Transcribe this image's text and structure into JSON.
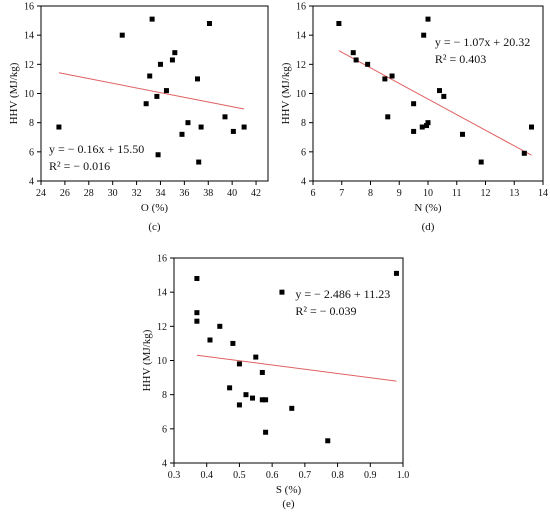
{
  "chart_data": [
    {
      "type": "scatter",
      "panel_label": "(c)",
      "xlabel": "O (%)",
      "ylabel": "HHV (MJ/kg)",
      "xlim": [
        24,
        43
      ],
      "ylim": [
        4,
        16
      ],
      "xticks": [
        "24",
        "26",
        "28",
        "30",
        "32",
        "34",
        "36",
        "38",
        "40",
        "42"
      ],
      "yticks": [
        "4",
        "6",
        "8",
        "10",
        "12",
        "14",
        "16"
      ],
      "xtick_values": [
        24,
        26,
        28,
        30,
        32,
        34,
        36,
        38,
        40,
        42
      ],
      "ytick_values": [
        4,
        6,
        8,
        10,
        12,
        14,
        16
      ],
      "equation": "y = − 0.16x + 15.50",
      "r2": "R² = − 0.016",
      "annotation_pos": "bottom-left",
      "fit": {
        "slope": -0.16,
        "intercept": 15.5,
        "x_range": [
          25.5,
          41
        ]
      },
      "series": [
        {
          "x": [
            25.5,
            30.8,
            32.8,
            33.1,
            33.3,
            33.7,
            33.8,
            34.0,
            34.5,
            35.0,
            35.2,
            35.8,
            36.3,
            37.1,
            37.2,
            37.4,
            38.1,
            39.4,
            40.1,
            41.0
          ],
          "y": [
            7.7,
            14.0,
            9.3,
            11.2,
            15.1,
            9.8,
            5.8,
            12.0,
            10.2,
            12.3,
            12.8,
            7.2,
            8.0,
            11.0,
            5.3,
            7.7,
            14.8,
            8.4,
            7.4,
            7.7
          ]
        }
      ],
      "grid": false,
      "trendline_color": "#e06060"
    },
    {
      "type": "scatter",
      "panel_label": "(d)",
      "xlabel": "N (%)",
      "ylabel": "HHV (MJ/kg)",
      "xlim": [
        6,
        14
      ],
      "ylim": [
        4,
        16
      ],
      "xticks": [
        "6",
        "7",
        "8",
        "9",
        "10",
        "11",
        "12",
        "13",
        "14"
      ],
      "yticks": [
        "4",
        "6",
        "8",
        "10",
        "12",
        "14",
        "16"
      ],
      "xtick_values": [
        6,
        7,
        8,
        9,
        10,
        11,
        12,
        13,
        14
      ],
      "ytick_values": [
        4,
        6,
        8,
        10,
        12,
        14,
        16
      ],
      "equation": "y = − 1.07x + 20.32",
      "r2": "R² = 0.403",
      "annotation_pos": "top-right",
      "fit": {
        "slope": -1.07,
        "intercept": 20.32,
        "x_range": [
          6.9,
          13.6
        ]
      },
      "series": [
        {
          "x": [
            6.9,
            7.4,
            7.5,
            7.9,
            8.5,
            8.6,
            8.75,
            9.5,
            9.5,
            9.8,
            9.85,
            9.95,
            10.0,
            10.0,
            10.4,
            10.55,
            11.2,
            11.85,
            13.35,
            13.6
          ],
          "y": [
            14.8,
            12.8,
            12.3,
            12.0,
            11.0,
            8.4,
            11.2,
            7.4,
            9.3,
            7.7,
            14.0,
            7.8,
            8.0,
            15.1,
            10.2,
            9.8,
            7.2,
            5.3,
            5.9,
            7.7
          ]
        }
      ],
      "grid": false,
      "trendline_color": "#e06060"
    },
    {
      "type": "scatter",
      "panel_label": "(e)",
      "xlabel": "S (%)",
      "ylabel": "HHV (MJ/kg)",
      "xlim": [
        0.3,
        1.0
      ],
      "ylim": [
        4,
        16
      ],
      "xticks": [
        "0.3",
        "0.4",
        "0.5",
        "0.6",
        "0.7",
        "0.8",
        "0.9",
        "1.0"
      ],
      "yticks": [
        "4",
        "6",
        "8",
        "10",
        "12",
        "14",
        "16"
      ],
      "xtick_values": [
        0.3,
        0.4,
        0.5,
        0.6,
        0.7,
        0.8,
        0.9,
        1.0
      ],
      "ytick_values": [
        4,
        6,
        8,
        10,
        12,
        14,
        16
      ],
      "equation": "y = − 2.486 + 11.23",
      "r2": "R² = − 0.039",
      "annotation_pos": "top-right",
      "fit": {
        "slope": -2.486,
        "intercept": 11.23,
        "x_range": [
          0.37,
          0.98
        ]
      },
      "series": [
        {
          "x": [
            0.37,
            0.37,
            0.37,
            0.41,
            0.44,
            0.47,
            0.48,
            0.5,
            0.5,
            0.52,
            0.54,
            0.55,
            0.57,
            0.57,
            0.58,
            0.58,
            0.63,
            0.66,
            0.77,
            0.98
          ],
          "y": [
            14.8,
            12.8,
            12.3,
            11.2,
            12.0,
            8.4,
            11.0,
            9.8,
            7.4,
            8.0,
            7.8,
            10.2,
            9.3,
            7.7,
            7.7,
            5.8,
            14.0,
            7.2,
            5.3,
            15.1
          ]
        }
      ],
      "grid": false,
      "trendline_color": "#e06060"
    }
  ]
}
